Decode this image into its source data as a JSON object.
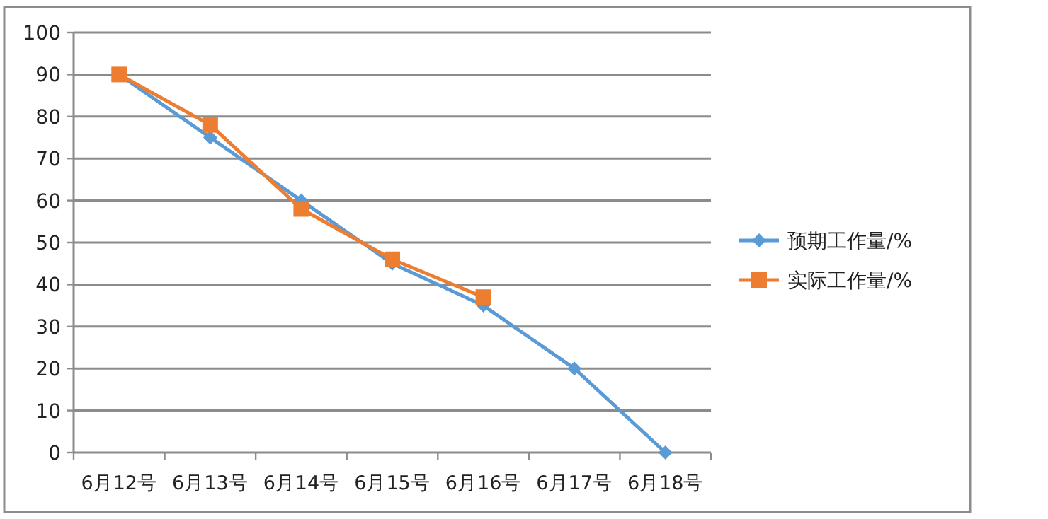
{
  "chart_data": {
    "type": "line",
    "categories": [
      "6月12号",
      "6月13号",
      "6月14号",
      "6月15号",
      "6月16号",
      "6月17号",
      "6月18号"
    ],
    "series": [
      {
        "name": "预期工作量/%",
        "color": "#5b9bd5",
        "marker": "diamond",
        "values": [
          90,
          75,
          60,
          45,
          35,
          20,
          0
        ]
      },
      {
        "name": "实际工作量/%",
        "color": "#ed7d31",
        "marker": "square",
        "values": [
          90,
          78,
          58,
          46,
          37,
          null,
          null
        ]
      }
    ],
    "ylim": [
      0,
      100
    ],
    "yticks": [
      0,
      10,
      20,
      30,
      40,
      50,
      60,
      70,
      80,
      90,
      100
    ],
    "grid": "y",
    "legend": "right",
    "line_style": "solid"
  }
}
